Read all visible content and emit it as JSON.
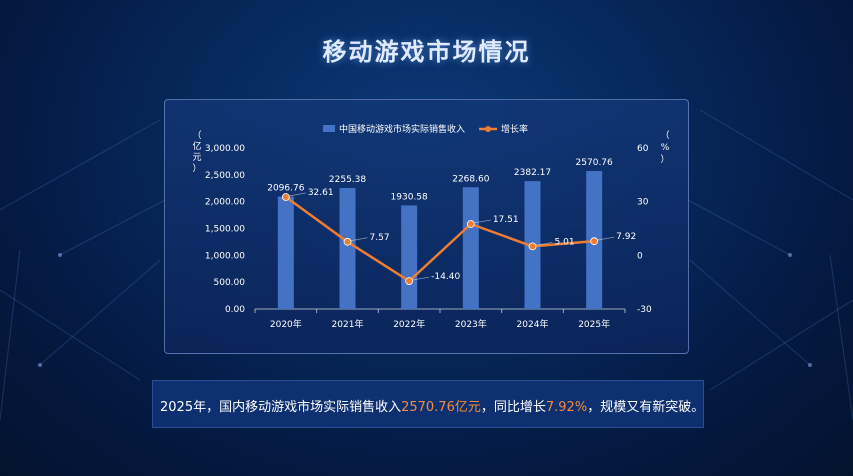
{
  "page": {
    "title": "移动游戏市场情况"
  },
  "chart_data": {
    "type": "bar",
    "categories": [
      "2020年",
      "2021年",
      "2022年",
      "2023年",
      "2024年",
      "2025年"
    ],
    "series": [
      {
        "name": "中国移动游戏市场实际销售收入",
        "type": "bar",
        "axis": "left",
        "values": [
          2096.76,
          2255.38,
          1930.58,
          2268.6,
          2382.17,
          2570.76
        ]
      },
      {
        "name": "增长率",
        "type": "line",
        "axis": "right",
        "values": [
          32.61,
          7.57,
          -14.4,
          17.51,
          5.01,
          7.92
        ]
      }
    ],
    "bar_labels": [
      "2096.76",
      "2255.38",
      "1930.58",
      "2268.60",
      "2382.17",
      "2570.76"
    ],
    "line_labels": [
      "32.61",
      "7.57",
      "-14.40",
      "17.51",
      "5.01",
      "7.92"
    ],
    "y_left": {
      "label": "（亿元）",
      "ylim": [
        0,
        3000
      ],
      "ticks": [
        "0.00",
        "500.00",
        "1,000.00",
        "1,500.00",
        "2,000.00",
        "2,500.00",
        "3,000.00"
      ]
    },
    "y_right": {
      "label": "（%）",
      "ylim": [
        -30,
        60
      ],
      "ticks": [
        "-30",
        "0",
        "30",
        "60"
      ]
    },
    "legend_position": "top",
    "colors": {
      "bar": "#4472c4",
      "line": "#ed7d31"
    }
  },
  "summary": {
    "p1": "2025年，国内移动游戏市场实际销售收入",
    "h1": "2570.76亿元",
    "p2": "，同比增长",
    "h2": "7.92%",
    "p3": "，规模又有新突破。"
  }
}
